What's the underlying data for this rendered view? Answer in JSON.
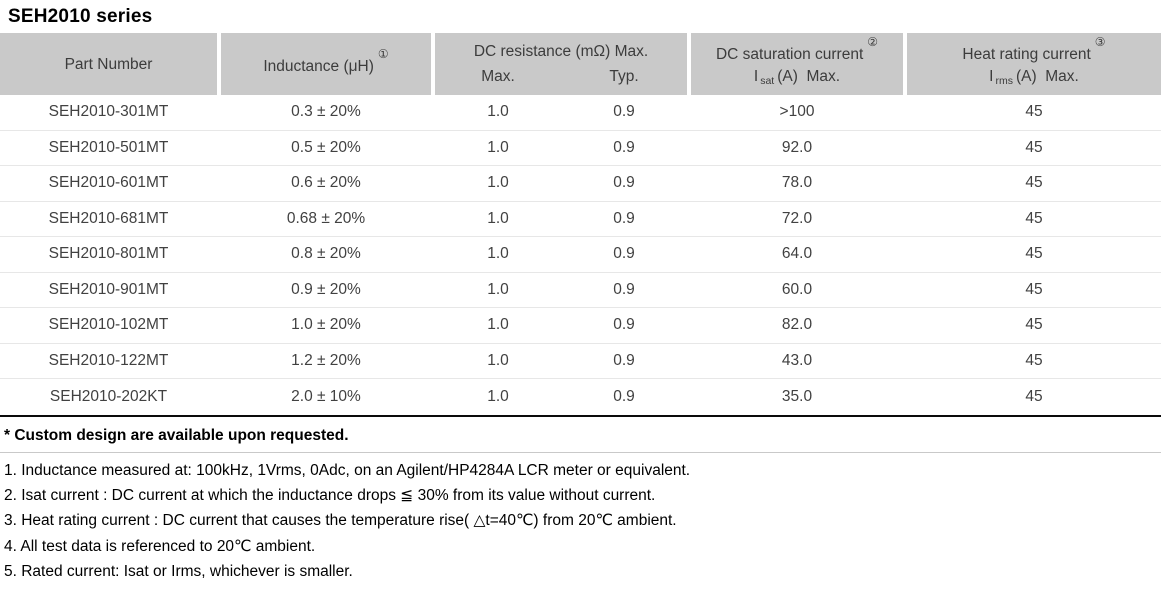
{
  "title": "SEH2010 series",
  "table": {
    "headers": {
      "part_number": "Part Number",
      "inductance": "Inductance (μH)",
      "inductance_note_ref": "①",
      "dc_resistance": "DC resistance (mΩ) Max.",
      "dc_resistance_max": "Max.",
      "dc_resistance_typ": "Typ.",
      "dc_saturation": "DC saturation current",
      "dc_saturation_note_ref": "②",
      "isat_symbol": "I",
      "isat_sub": "sat",
      "isat_rest": "(A)  Max.",
      "heat_rating": "Heat rating current",
      "heat_rating_note_ref": "③",
      "irms_symbol": "I",
      "irms_sub": "rms",
      "irms_rest": "(A)  Max."
    },
    "rows": [
      {
        "part": "SEH2010-301MT",
        "inductance": "0.3 ± 20%",
        "dcr_max": "1.0",
        "dcr_typ": "0.9",
        "isat": ">100",
        "irms": "45"
      },
      {
        "part": "SEH2010-501MT",
        "inductance": "0.5 ± 20%",
        "dcr_max": "1.0",
        "dcr_typ": "0.9",
        "isat": "92.0",
        "irms": "45"
      },
      {
        "part": "SEH2010-601MT",
        "inductance": "0.6 ± 20%",
        "dcr_max": "1.0",
        "dcr_typ": "0.9",
        "isat": "78.0",
        "irms": "45"
      },
      {
        "part": "SEH2010-681MT",
        "inductance": "0.68 ± 20%",
        "dcr_max": "1.0",
        "dcr_typ": "0.9",
        "isat": "72.0",
        "irms": "45"
      },
      {
        "part": "SEH2010-801MT",
        "inductance": "0.8 ± 20%",
        "dcr_max": "1.0",
        "dcr_typ": "0.9",
        "isat": "64.0",
        "irms": "45"
      },
      {
        "part": "SEH2010-901MT",
        "inductance": "0.9 ± 20%",
        "dcr_max": "1.0",
        "dcr_typ": "0.9",
        "isat": "60.0",
        "irms": "45"
      },
      {
        "part": "SEH2010-102MT",
        "inductance": "1.0 ± 20%",
        "dcr_max": "1.0",
        "dcr_typ": "0.9",
        "isat": "82.0",
        "irms": "45"
      },
      {
        "part": "SEH2010-122MT",
        "inductance": "1.2 ± 20%",
        "dcr_max": "1.0",
        "dcr_typ": "0.9",
        "isat": "43.0",
        "irms": "45"
      },
      {
        "part": "SEH2010-202KT",
        "inductance": "2.0 ± 10%",
        "dcr_max": "1.0",
        "dcr_typ": "0.9",
        "isat": "35.0",
        "irms": "45"
      }
    ]
  },
  "footnotes": {
    "custom_note": "* Custom design are available upon requested.",
    "notes": [
      "1. Inductance measured at: 100kHz, 1Vrms, 0Adc, on an Agilent/HP4284A LCR meter or equivalent.",
      "2. Isat current : DC current at which the inductance drops ≦ 30% from its value without current.",
      "3. Heat rating current : DC current that causes the temperature rise( △t=40℃) from 20℃ ambient.",
      "4. All test data is referenced to 20℃ ambient.",
      "5. Rated current: Isat or Irms, whichever is smaller."
    ]
  },
  "colors": {
    "header_bg": "#c9c9c9",
    "table_bottom_rule": "#0a0a0a",
    "row_separator": "#e7e7e7"
  }
}
